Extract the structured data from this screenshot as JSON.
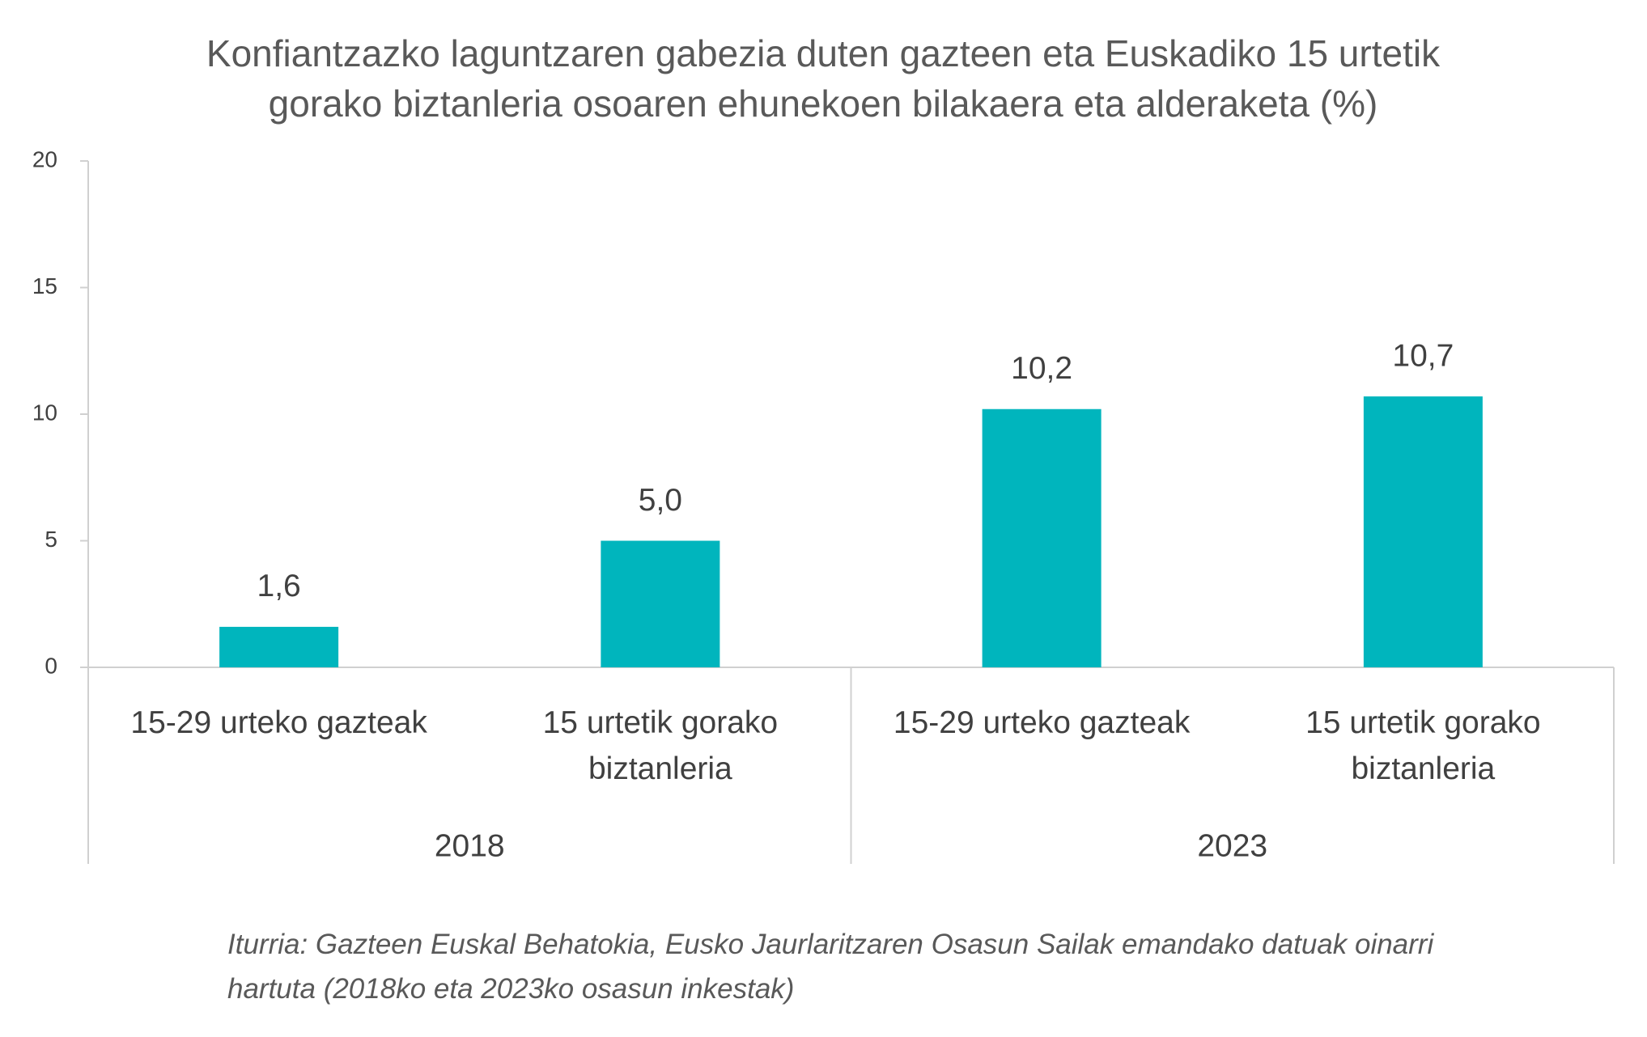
{
  "chart_data": {
    "type": "bar",
    "title": "Konfiantzazko laguntzaren gabezia duten gazteen eta Euskadiko 15 urtetik gorako biztanleria osoaren ehunekoen bilakaera eta alderaketa (%)",
    "categories": [
      "15-29 urteko gazteak",
      "15 urtetik gorako biztanleria",
      "15-29 urteko gazteak",
      "15 urtetik gorako biztanleria"
    ],
    "groups": [
      "2018",
      "2023"
    ],
    "values": [
      1.6,
      5.0,
      10.2,
      10.7
    ],
    "value_labels": [
      "1,6",
      "5,0",
      "10,2",
      "10,7"
    ],
    "color": "#00b5bd",
    "ylim": [
      0,
      20
    ],
    "yticks": [
      0,
      5,
      10,
      15,
      20
    ],
    "source": "Iturria: Gazteen Euskal Behatokia, Eusko Jaurlaritzaren Osasun Sailak emandako datuak oinarri hartuta (2018ko eta 2023ko osasun inkestak)"
  }
}
